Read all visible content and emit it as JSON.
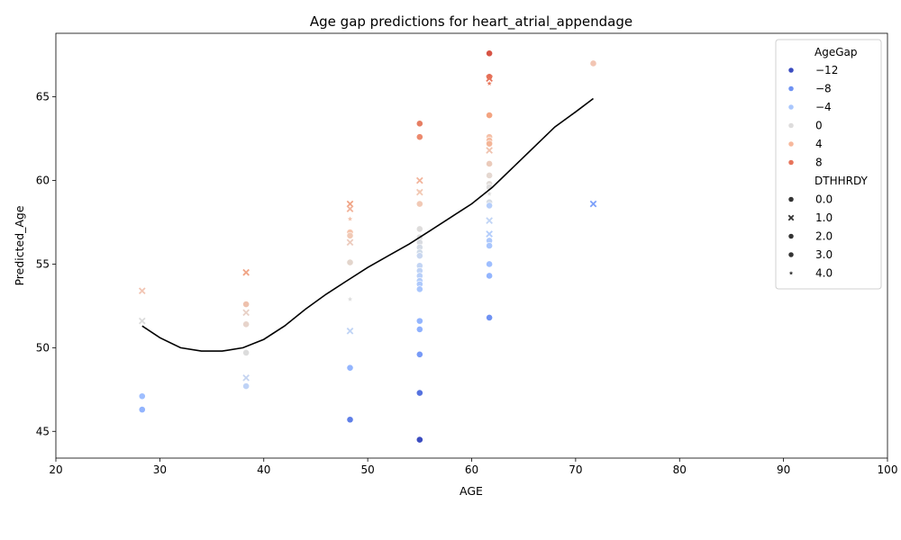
{
  "chart_data": {
    "type": "scatter",
    "title": "Age gap predictions for heart_atrial_appendage",
    "xlabel": "AGE",
    "ylabel": "Predicted_Age",
    "xlim": [
      20,
      100
    ],
    "ylim": [
      43.4,
      68.8
    ],
    "xticks": [
      20,
      30,
      40,
      50,
      60,
      70,
      80,
      90,
      100
    ],
    "yticks": [
      45,
      50,
      55,
      60,
      65
    ],
    "grid": false,
    "legend": {
      "placement": "top-right",
      "hue_title": "AgeGap",
      "hue_entries": [
        {
          "label": "−12",
          "color": "#3b4cc0"
        },
        {
          "label": "−8",
          "color": "#6f92f3"
        },
        {
          "label": "−4",
          "color": "#aac7fd"
        },
        {
          "label": "0",
          "color": "#dddcdc"
        },
        {
          "label": "4",
          "color": "#f7b89c"
        },
        {
          "label": "8",
          "color": "#e7745b"
        }
      ],
      "style_title": "DTHHRDY",
      "style_entries": [
        {
          "label": "0.0",
          "marker": "circle"
        },
        {
          "label": "1.0",
          "marker": "x"
        },
        {
          "label": "2.0",
          "marker": "circle"
        },
        {
          "label": "3.0",
          "marker": "circle"
        },
        {
          "label": "4.0",
          "marker": "star"
        }
      ]
    },
    "points": [
      {
        "x": 28.3,
        "y": 53.4,
        "color": "#f2c5b3",
        "marker": "x"
      },
      {
        "x": 28.3,
        "y": 51.6,
        "color": "#dcdcdc",
        "marker": "x"
      },
      {
        "x": 28.3,
        "y": 47.1,
        "color": "#9ebeff",
        "marker": "circle"
      },
      {
        "x": 28.3,
        "y": 46.3,
        "color": "#92b4fe",
        "marker": "circle"
      },
      {
        "x": 38.3,
        "y": 54.5,
        "color": "#f0a485",
        "marker": "x"
      },
      {
        "x": 38.3,
        "y": 52.6,
        "color": "#eec1ad",
        "marker": "circle"
      },
      {
        "x": 38.3,
        "y": 52.1,
        "color": "#e8d0c6",
        "marker": "x"
      },
      {
        "x": 38.3,
        "y": 51.4,
        "color": "#e7d4cb",
        "marker": "circle"
      },
      {
        "x": 38.3,
        "y": 49.7,
        "color": "#dcdcdc",
        "marker": "circle"
      },
      {
        "x": 38.3,
        "y": 48.2,
        "color": "#c5d4f0",
        "marker": "x"
      },
      {
        "x": 38.3,
        "y": 47.7,
        "color": "#bfd3f6",
        "marker": "circle"
      },
      {
        "x": 48.3,
        "y": 58.6,
        "color": "#f0a485",
        "marker": "x"
      },
      {
        "x": 48.3,
        "y": 58.3,
        "color": "#f2b49c",
        "marker": "x"
      },
      {
        "x": 48.3,
        "y": 57.7,
        "color": "#f2c0a9",
        "marker": "star"
      },
      {
        "x": 48.3,
        "y": 56.9,
        "color": "#f5c4ac",
        "marker": "circle"
      },
      {
        "x": 48.3,
        "y": 56.7,
        "color": "#f1c9b5",
        "marker": "circle"
      },
      {
        "x": 48.3,
        "y": 56.3,
        "color": "#eccbbd",
        "marker": "x"
      },
      {
        "x": 48.3,
        "y": 55.1,
        "color": "#e3d5cc",
        "marker": "circle"
      },
      {
        "x": 48.3,
        "y": 52.9,
        "color": "#dcdcdc",
        "marker": "star"
      },
      {
        "x": 48.3,
        "y": 51.0,
        "color": "#c0d4f5",
        "marker": "x"
      },
      {
        "x": 48.3,
        "y": 48.8,
        "color": "#93b5fe",
        "marker": "circle"
      },
      {
        "x": 48.3,
        "y": 45.7,
        "color": "#5f7fe8",
        "marker": "circle"
      },
      {
        "x": 55.0,
        "y": 63.4,
        "color": "#e67e63",
        "marker": "circle"
      },
      {
        "x": 55.0,
        "y": 62.6,
        "color": "#ec8a6e",
        "marker": "circle"
      },
      {
        "x": 55.0,
        "y": 60.0,
        "color": "#f2b49c",
        "marker": "x"
      },
      {
        "x": 55.0,
        "y": 59.3,
        "color": "#efc3ae",
        "marker": "star"
      },
      {
        "x": 55.0,
        "y": 59.3,
        "color": "#f2c9b4",
        "marker": "x"
      },
      {
        "x": 55.0,
        "y": 58.6,
        "color": "#f1c9b5",
        "marker": "circle"
      },
      {
        "x": 55.0,
        "y": 57.1,
        "color": "#dedcdb",
        "marker": "circle"
      },
      {
        "x": 55.0,
        "y": 56.6,
        "color": "#dcdcdc",
        "marker": "circle"
      },
      {
        "x": 55.0,
        "y": 56.3,
        "color": "#d9dce1",
        "marker": "circle"
      },
      {
        "x": 55.0,
        "y": 56.0,
        "color": "#d4dbe6",
        "marker": "circle"
      },
      {
        "x": 55.0,
        "y": 55.7,
        "color": "#cedae9",
        "marker": "circle"
      },
      {
        "x": 55.0,
        "y": 55.5,
        "color": "#c9d7f0",
        "marker": "circle"
      },
      {
        "x": 55.0,
        "y": 54.9,
        "color": "#c3d5f4",
        "marker": "circle"
      },
      {
        "x": 55.0,
        "y": 54.6,
        "color": "#bfd3f6",
        "marker": "circle"
      },
      {
        "x": 55.0,
        "y": 54.3,
        "color": "#b9d0f9",
        "marker": "circle"
      },
      {
        "x": 55.0,
        "y": 54.0,
        "color": "#b3cdfb",
        "marker": "circle"
      },
      {
        "x": 55.0,
        "y": 53.8,
        "color": "#aec9fc",
        "marker": "circle"
      },
      {
        "x": 55.0,
        "y": 53.5,
        "color": "#a9c6fd",
        "marker": "circle"
      },
      {
        "x": 55.0,
        "y": 51.6,
        "color": "#93b5fe",
        "marker": "circle"
      },
      {
        "x": 55.0,
        "y": 51.1,
        "color": "#8fb1fe",
        "marker": "circle"
      },
      {
        "x": 55.0,
        "y": 49.6,
        "color": "#779af7",
        "marker": "circle"
      },
      {
        "x": 55.0,
        "y": 47.3,
        "color": "#5572df",
        "marker": "circle"
      },
      {
        "x": 55.0,
        "y": 44.5,
        "color": "#3b4cc0",
        "marker": "circle"
      },
      {
        "x": 61.7,
        "y": 67.6,
        "color": "#d75445",
        "marker": "circle"
      },
      {
        "x": 61.7,
        "y": 66.2,
        "color": "#e36c55",
        "marker": "circle"
      },
      {
        "x": 61.7,
        "y": 66.1,
        "color": "#e7745b",
        "marker": "x"
      },
      {
        "x": 61.7,
        "y": 65.8,
        "color": "#e97a5f",
        "marker": "star"
      },
      {
        "x": 61.7,
        "y": 63.9,
        "color": "#f3a481",
        "marker": "circle"
      },
      {
        "x": 61.7,
        "y": 62.6,
        "color": "#f5c0a7",
        "marker": "circle"
      },
      {
        "x": 61.7,
        "y": 62.4,
        "color": "#f6bda2",
        "marker": "circle"
      },
      {
        "x": 61.7,
        "y": 62.2,
        "color": "#f4b597",
        "marker": "circle"
      },
      {
        "x": 61.7,
        "y": 61.8,
        "color": "#efc2ae",
        "marker": "x"
      },
      {
        "x": 61.7,
        "y": 61.0,
        "color": "#ebcbbb",
        "marker": "circle"
      },
      {
        "x": 61.7,
        "y": 60.3,
        "color": "#e5d8d1",
        "marker": "circle"
      },
      {
        "x": 61.7,
        "y": 59.8,
        "color": "#e0dbd8",
        "marker": "circle"
      },
      {
        "x": 61.7,
        "y": 59.6,
        "color": "#dddcdc",
        "marker": "circle"
      },
      {
        "x": 61.7,
        "y": 59.2,
        "color": "#dcdcdc",
        "marker": "star"
      },
      {
        "x": 61.7,
        "y": 58.7,
        "color": "#d6dce4",
        "marker": "circle"
      },
      {
        "x": 61.7,
        "y": 58.6,
        "color": "#c9d7f0",
        "marker": "star"
      },
      {
        "x": 61.7,
        "y": 58.5,
        "color": "#b6cefa",
        "marker": "circle"
      },
      {
        "x": 61.7,
        "y": 57.6,
        "color": "#c0d4f5",
        "marker": "x"
      },
      {
        "x": 61.7,
        "y": 56.8,
        "color": "#b3cdfb",
        "marker": "x"
      },
      {
        "x": 61.7,
        "y": 56.4,
        "color": "#aec9fc",
        "marker": "circle"
      },
      {
        "x": 61.7,
        "y": 56.1,
        "color": "#a9c6fd",
        "marker": "circle"
      },
      {
        "x": 61.7,
        "y": 55.0,
        "color": "#9ebeff",
        "marker": "circle"
      },
      {
        "x": 61.7,
        "y": 54.3,
        "color": "#93b5fe",
        "marker": "circle"
      },
      {
        "x": 61.7,
        "y": 51.8,
        "color": "#6f92f3",
        "marker": "circle"
      },
      {
        "x": 71.7,
        "y": 67.0,
        "color": "#f2c5b3",
        "marker": "circle"
      },
      {
        "x": 71.7,
        "y": 58.6,
        "color": "#7da0f9",
        "marker": "x"
      }
    ],
    "trend_line": {
      "color": "#000000",
      "x": [
        28.3,
        30,
        32,
        34,
        36,
        38,
        40,
        42,
        44,
        46,
        48,
        50,
        52,
        54,
        56,
        58,
        60,
        62,
        64,
        66,
        68,
        70,
        71.7
      ],
      "y": [
        51.3,
        50.6,
        50.0,
        49.8,
        49.8,
        50.0,
        50.5,
        51.3,
        52.3,
        53.2,
        54.0,
        54.8,
        55.5,
        56.2,
        57.0,
        57.8,
        58.6,
        59.6,
        60.8,
        62.0,
        63.2,
        64.1,
        64.9
      ]
    }
  }
}
